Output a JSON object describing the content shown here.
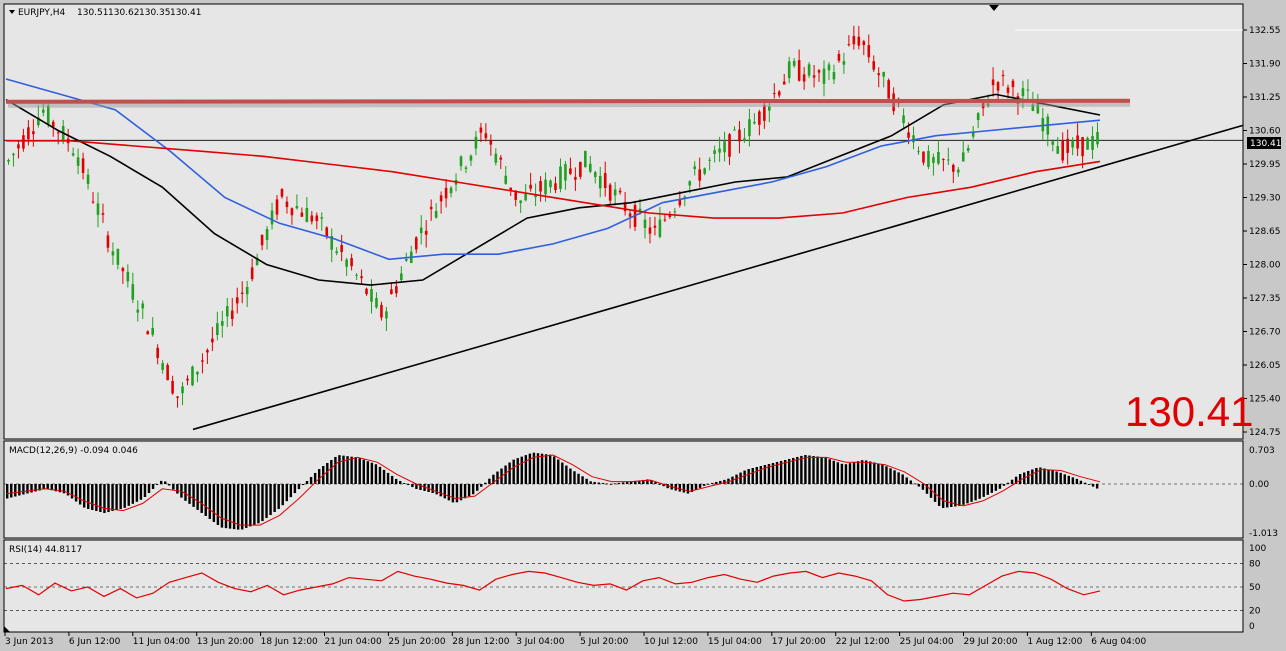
{
  "chart_data": {
    "type": "candlestick",
    "symbol": "EURJPY,H4",
    "ohlc": [
      "130.51",
      "130.62",
      "130.35",
      "130.41"
    ],
    "current_price": "130.41",
    "big_price_label": "130.41",
    "price_ticks": [
      "132.55",
      "131.90",
      "131.25",
      "130.60",
      "129.95",
      "129.30",
      "128.65",
      "128.00",
      "127.35",
      "126.70",
      "126.05",
      "125.40",
      "124.75"
    ],
    "price_range": [
      124.7,
      132.7
    ],
    "x_labels": [
      "3 Jun 2013",
      "6 Jun 12:00",
      "11 Jun 04:00",
      "13 Jun 20:00",
      "18 Jun 12:00",
      "21 Jun 04:00",
      "25 Jun 20:00",
      "28 Jun 12:00",
      "3 Jul 04:00",
      "5 Jul 20:00",
      "10 Jul 12:00",
      "15 Jul 04:00",
      "17 Jul 20:00",
      "22 Jul 12:00",
      "25 Jul 04:00",
      "29 Jul 20:00",
      "1 Aug 12:00",
      "6 Aug 04:00"
    ],
    "trend_line": {
      "start": [
        "13 Jun 20:00",
        124.8
      ],
      "end": [
        "after 6 Aug 04:00",
        130.7
      ]
    },
    "resistance_line": {
      "price": 131.1,
      "color": "#c0504d"
    },
    "moving_averages": [
      {
        "color": "#000000",
        "points": [
          131.2,
          130.6,
          130.1,
          129.5,
          128.6,
          128.0,
          127.7,
          127.6,
          127.7,
          128.3,
          128.9,
          129.1,
          129.2,
          129.4,
          129.6,
          129.7,
          130.1,
          130.5,
          131.1,
          131.3,
          131.1,
          130.9
        ]
      },
      {
        "color": "#3060e0",
        "points": [
          131.6,
          131.3,
          131.0,
          130.2,
          129.3,
          128.8,
          128.5,
          128.1,
          128.2,
          128.2,
          128.4,
          128.7,
          129.2,
          129.4,
          129.6,
          129.9,
          130.3,
          130.5,
          130.6,
          130.7,
          130.8
        ]
      },
      {
        "color": "#e00000",
        "points": [
          130.4,
          130.4,
          130.3,
          130.2,
          130.1,
          129.95,
          129.8,
          129.6,
          129.4,
          129.2,
          129.0,
          128.9,
          128.9,
          129.0,
          129.3,
          129.5,
          129.8,
          130.0
        ]
      }
    ],
    "macd": {
      "label": "MACD(12,26,9) -0.094 0.046",
      "ticks": [
        "0.703",
        "0.00",
        "-1.013"
      ],
      "range": [
        -1.013,
        0.703
      ],
      "bars": [
        -0.3,
        -0.2,
        -0.1,
        -0.2,
        -0.5,
        -0.6,
        -0.5,
        -0.3,
        0.1,
        -0.3,
        -0.6,
        -0.9,
        -0.95,
        -0.8,
        -0.5,
        -0.1,
        0.3,
        0.6,
        0.55,
        0.4,
        0.1,
        -0.1,
        -0.2,
        -0.4,
        -0.2,
        0.2,
        0.5,
        0.65,
        0.6,
        0.3,
        0.05,
        0.0,
        0.05,
        0.1,
        -0.1,
        -0.2,
        0.0,
        0.1,
        0.3,
        0.4,
        0.5,
        0.6,
        0.55,
        0.4,
        0.5,
        0.4,
        0.2,
        -0.1,
        -0.5,
        -0.45,
        -0.3,
        -0.1,
        0.2,
        0.35,
        0.25,
        0.1,
        -0.094
      ],
      "signal": [
        -0.2,
        -0.15,
        -0.1,
        -0.15,
        -0.35,
        -0.5,
        -0.55,
        -0.4,
        -0.1,
        -0.15,
        -0.4,
        -0.7,
        -0.85,
        -0.85,
        -0.65,
        -0.3,
        0.1,
        0.45,
        0.55,
        0.45,
        0.2,
        0.0,
        -0.15,
        -0.3,
        -0.25,
        0.05,
        0.35,
        0.55,
        0.6,
        0.4,
        0.15,
        0.05,
        0.05,
        0.08,
        -0.05,
        -0.15,
        -0.05,
        0.05,
        0.2,
        0.35,
        0.45,
        0.55,
        0.55,
        0.45,
        0.45,
        0.4,
        0.25,
        0.0,
        -0.35,
        -0.45,
        -0.35,
        -0.15,
        0.1,
        0.3,
        0.28,
        0.15,
        0.046
      ]
    },
    "rsi": {
      "label": "RSI(14) 44.8117",
      "ticks": [
        "100",
        "80",
        "50",
        "20",
        "0"
      ],
      "levels": [
        80,
        50,
        20
      ],
      "values": [
        48,
        52,
        40,
        55,
        45,
        50,
        38,
        48,
        36,
        42,
        56,
        62,
        68,
        56,
        48,
        44,
        52,
        40,
        46,
        50,
        54,
        62,
        60,
        58,
        70,
        64,
        60,
        55,
        52,
        46,
        60,
        66,
        70,
        68,
        62,
        56,
        52,
        54,
        46,
        58,
        62,
        54,
        56,
        62,
        66,
        60,
        56,
        64,
        68,
        70,
        62,
        68,
        64,
        58,
        40,
        32,
        34,
        38,
        42,
        40,
        52,
        64,
        70,
        68,
        60,
        48,
        40,
        45
      ]
    }
  }
}
